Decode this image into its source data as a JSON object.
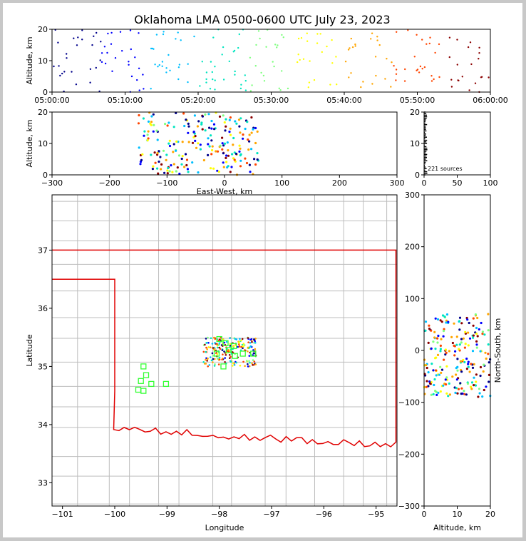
{
  "title": "Oklahoma LMA 0500-0600 UTC July 23, 2023",
  "colors": {
    "axis": "#000000",
    "county": "#bdbdbd",
    "state": "#e00000",
    "station": "#33ff33"
  },
  "chart_data": [
    {
      "id": "time-height",
      "type": "scatter",
      "ylabel": "Altitude, km",
      "ylim": [
        0,
        20
      ],
      "yticks": [
        "0",
        "10",
        "20"
      ],
      "xticks": [
        "05:00:00",
        "05:10:00",
        "05:20:00",
        "05:30:00",
        "05:40:00",
        "05:50:00",
        "06:00:00"
      ],
      "xlim_minutes": [
        0,
        60
      ],
      "color_scale": [
        "#00008b",
        "#0000ff",
        "#00bfff",
        "#00e5c0",
        "#7fff7f",
        "#ffff00",
        "#ffa500",
        "#ff4500",
        "#8b0000"
      ]
    },
    {
      "id": "ew-alt",
      "type": "scatter",
      "xlabel": "East-West, km",
      "ylabel": "Altitude, km",
      "xlim": [
        -300,
        300
      ],
      "ylim": [
        0,
        20
      ],
      "xticks": [
        "−300",
        "−200",
        "−100",
        "0",
        "100",
        "200",
        "300"
      ],
      "yticks": [
        "0",
        "10",
        "20"
      ]
    },
    {
      "id": "alt-hist",
      "type": "histogram",
      "xlim": [
        0,
        100
      ],
      "ylim": [
        0,
        20
      ],
      "xticks": [
        "0",
        "50",
        "100"
      ],
      "yticks": [
        "0",
        "10",
        "20"
      ],
      "annotation": "221 sources"
    },
    {
      "id": "plan-view",
      "type": "map",
      "xlabel": "Longitude",
      "ylabel": "Latitude",
      "xlim": [
        -101.2,
        -94.6
      ],
      "ylim": [
        32.6,
        37.95
      ],
      "xticks": [
        "−101",
        "−100",
        "−99",
        "−98",
        "−97",
        "−96",
        "−95"
      ],
      "yticks": [
        "33",
        "34",
        "35",
        "36",
        "37"
      ],
      "stations": [
        [
          -99.45,
          35.0
        ],
        [
          -99.4,
          34.85
        ],
        [
          -99.3,
          34.7
        ],
        [
          -99.5,
          34.75
        ],
        [
          -99.45,
          34.58
        ],
        [
          -99.02,
          34.7
        ],
        [
          -98.0,
          35.47
        ],
        [
          -97.88,
          35.4
        ],
        [
          -97.72,
          35.35
        ],
        [
          -97.55,
          35.22
        ],
        [
          -97.35,
          35.22
        ],
        [
          -97.92,
          35.0
        ],
        [
          -98.05,
          35.22
        ],
        [
          -97.7,
          35.18
        ],
        [
          -97.82,
          35.28
        ],
        [
          -99.55,
          34.6
        ]
      ]
    },
    {
      "id": "ns-alt",
      "type": "scatter",
      "xlabel": "Altitude, km",
      "ylabel": "North-South, km",
      "xlim": [
        0,
        20
      ],
      "ylim": [
        -300,
        300
      ],
      "xticks": [
        "0",
        "10",
        "20"
      ],
      "yticks": [
        "−300",
        "−200",
        "−100",
        "0",
        "100",
        "200",
        "300"
      ]
    }
  ]
}
